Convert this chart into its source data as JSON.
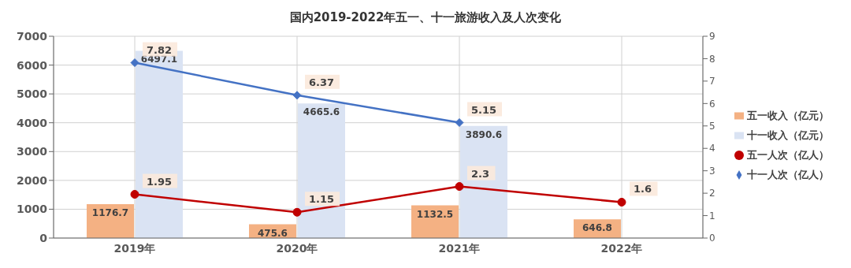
{
  "chart_data": {
    "type": "bar",
    "title": "国内2019-2022年五一、十一旅游收入及人次变化",
    "categories": [
      "2019年",
      "2020年",
      "2021年",
      "2022年"
    ],
    "series": [
      {
        "name": "五一收入（亿元）",
        "color": "#f4b183",
        "values": [
          1176.7,
          475.6,
          1132.5,
          646.8
        ]
      },
      {
        "name": "十一收入（亿元）",
        "color": "#dae3f3",
        "values": [
          6497.1,
          4665.6,
          3890.6,
          null
        ]
      },
      {
        "name": "五一人次（亿人）",
        "type": "line",
        "axis": "y2",
        "marker": "circle",
        "color": "#c00000",
        "values": [
          1.95,
          1.15,
          2.3,
          1.6
        ]
      },
      {
        "name": "十一人次（亿人）",
        "type": "line",
        "axis": "y2",
        "marker": "diamond",
        "color": "#4472c4",
        "values": [
          7.82,
          6.37,
          5.15,
          null
        ]
      }
    ],
    "ylim": [
      0,
      7000
    ],
    "yticks": [
      0,
      1000,
      2000,
      3000,
      4000,
      5000,
      6000,
      7000
    ],
    "y2lim": [
      0,
      9
    ],
    "y2ticks": [
      0,
      1,
      2,
      3,
      4,
      5,
      6,
      7,
      8,
      9
    ],
    "grid": true,
    "legend": "right",
    "data_labels": true
  }
}
